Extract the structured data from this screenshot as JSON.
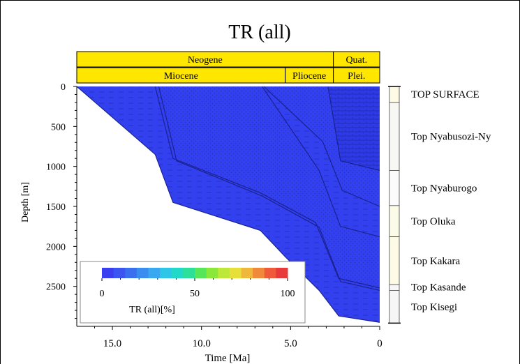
{
  "chart_data": {
    "type": "area",
    "title": "TR (all)",
    "xlabel": "Time [Ma]",
    "ylabel": "Depth [m]",
    "x_reversed": true,
    "xlim": [
      17.0,
      0
    ],
    "ylim": [
      0,
      3000
    ],
    "x_ticks": [
      15.0,
      10.0,
      5.0,
      0
    ],
    "x_tick_labels": [
      "15.0",
      "10.0",
      "5.0",
      "0"
    ],
    "y_ticks": [
      0,
      500,
      1000,
      1500,
      2000,
      2500
    ],
    "y_tick_labels": [
      "0",
      "500",
      "1000",
      "1500",
      "2000",
      "2500"
    ],
    "periods": [
      {
        "label": "Neogene",
        "start": 17.0,
        "end": 2.6
      },
      {
        "label": "Quat.",
        "start": 2.6,
        "end": 0
      }
    ],
    "epochs": [
      {
        "label": "Miocene",
        "start": 17.0,
        "end": 5.3
      },
      {
        "label": "Pliocene",
        "start": 5.3,
        "end": 2.6
      },
      {
        "label": "Plei.",
        "start": 2.6,
        "end": 0
      }
    ],
    "timescale_color": "#ffe600",
    "fill_color": "#3340f0",
    "fill_value_percent": 0,
    "colorbar": {
      "label": "TR (all)[%]",
      "min": 0,
      "max": 100,
      "tick_labels": [
        "0",
        "50",
        "100"
      ],
      "colors": [
        "#3a3ff0",
        "#3a55f0",
        "#3a70f0",
        "#3a8cf0",
        "#3aa8f0",
        "#2ec5e8",
        "#22d8c8",
        "#2ce09a",
        "#55e65a",
        "#8ae83a",
        "#bde83a",
        "#e8e03a",
        "#f0b83a",
        "#f08a3a",
        "#f05a3a",
        "#e83a3a"
      ]
    },
    "burial_surfaces": [
      {
        "x": [
          17.0,
          12.6,
          11.6,
          6.7,
          5.3,
          3.4,
          2.3,
          0
        ],
        "y": [
          0,
          850,
          1450,
          1800,
          2130,
          2550,
          2870,
          2950
        ]
      },
      {
        "x": [
          12.6,
          11.6,
          6.7,
          3.6,
          2.3,
          0
        ],
        "y": [
          0,
          900,
          1330,
          1700,
          2400,
          2520
        ]
      },
      {
        "x": [
          12.4,
          11.4,
          6.6,
          3.4,
          2.2,
          0
        ],
        "y": [
          0,
          930,
          1370,
          1760,
          2440,
          2550
        ]
      },
      {
        "x": [
          6.6,
          3.4,
          2.2,
          0
        ],
        "y": [
          0,
          1050,
          1750,
          1880
        ]
      },
      {
        "x": [
          6.5,
          3.2,
          2.1,
          0
        ],
        "y": [
          0,
          690,
          1300,
          1500
        ]
      },
      {
        "x": [
          2.9,
          2.2,
          0
        ],
        "y": [
          0,
          930,
          1050
        ]
      }
    ],
    "formations": [
      {
        "name": "TOP SURFACE",
        "top": 0,
        "base": 200,
        "color": "#fdfbe4"
      },
      {
        "name": "Top Nyabusozi-Ny",
        "top": 200,
        "base": 1050,
        "color": "#f7f7f4"
      },
      {
        "name": "Top Nyaburogo",
        "top": 1050,
        "base": 1490,
        "color": "#fbfbfb"
      },
      {
        "name": "Top Oluka",
        "top": 1490,
        "base": 1880,
        "color": "#fcfbe8"
      },
      {
        "name": "Top Kakara",
        "top": 1880,
        "base": 2480,
        "color": "#fdfbe6"
      },
      {
        "name": "Top Kasande",
        "top": 2480,
        "base": 2550,
        "color": "#f7f7f7"
      },
      {
        "name": "Top Kisegi",
        "top": 2550,
        "base": 2960,
        "color": "#f6f6f6"
      }
    ],
    "grid": false,
    "legend_position": "bottom-left"
  }
}
